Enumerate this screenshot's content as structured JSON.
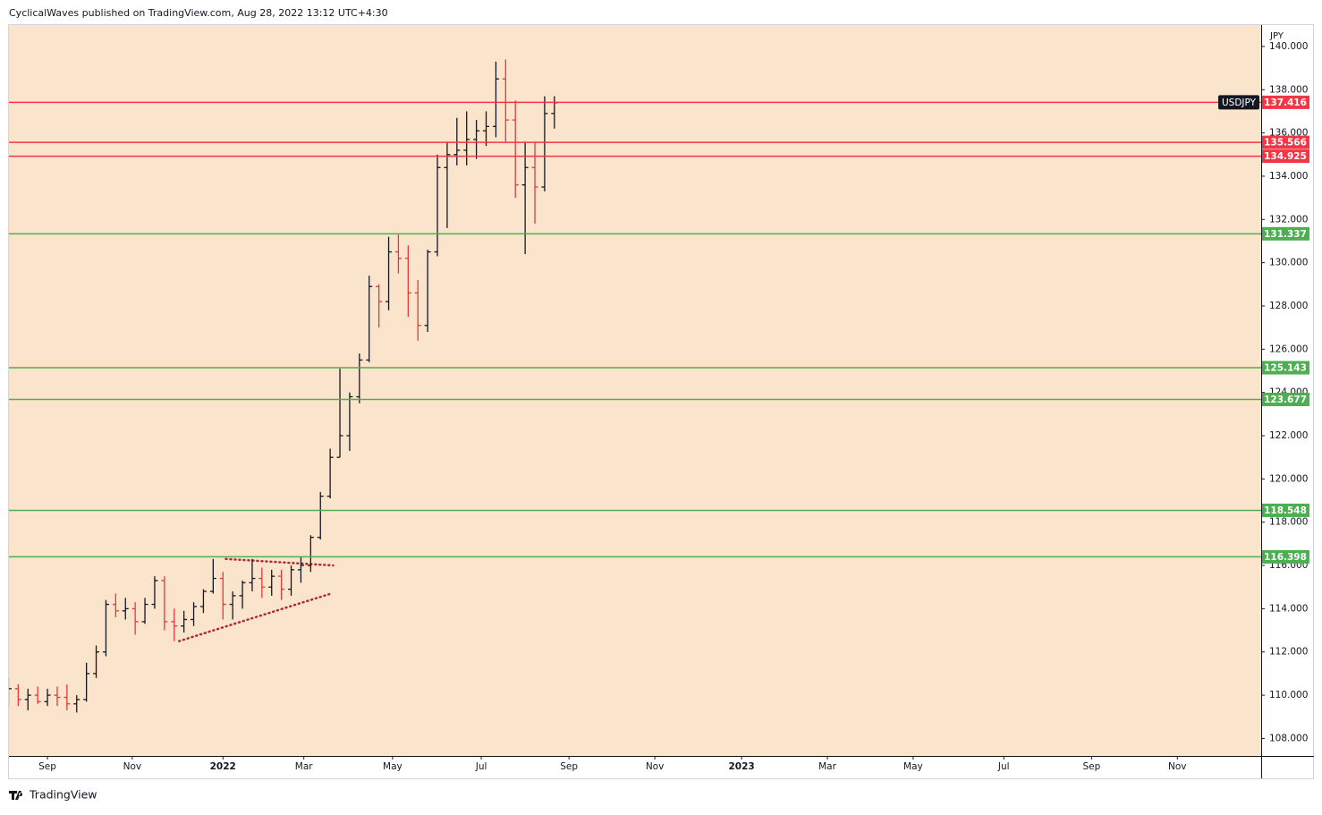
{
  "header": "CyclicalWaves published on TradingView.com, Aug 28, 2022 13:12 UTC+4:30",
  "footer": "TradingView",
  "chart_data": {
    "type": "ohlc",
    "symbol": "USDJPY",
    "currency": "JPY",
    "up_color": "#131722",
    "down_color": "#e5383b",
    "x": [
      -4,
      -3,
      -2,
      -1,
      0,
      1,
      2,
      3,
      4,
      5,
      6,
      7,
      8,
      9,
      10,
      11,
      12,
      13,
      14,
      15,
      16,
      17,
      18,
      19,
      20,
      21,
      22,
      23,
      24,
      25,
      26,
      27,
      28,
      29,
      30,
      31,
      32,
      33,
      34,
      35,
      36,
      37,
      38,
      39,
      40,
      41,
      42,
      43,
      44,
      45,
      46,
      47,
      48,
      49,
      50,
      51,
      52
    ],
    "open": [
      109.7,
      110.3,
      109.8,
      110.0,
      109.7,
      110.0,
      109.9,
      109.6,
      109.8,
      111.0,
      112.0,
      114.2,
      113.9,
      114.0,
      113.4,
      114.2,
      115.3,
      113.4,
      113.2,
      113.5,
      114.1,
      114.8,
      115.4,
      114.2,
      114.6,
      115.2,
      115.4,
      115.0,
      115.5,
      114.9,
      115.8,
      116.0,
      117.3,
      119.2,
      121.0,
      122.0,
      123.8,
      125.5,
      128.9,
      128.2,
      130.5,
      130.2,
      128.6,
      127.1,
      130.5,
      134.4,
      135.0,
      135.2,
      135.7,
      136.1,
      136.3,
      138.5,
      136.6,
      133.6,
      134.4,
      133.5,
      136.9
    ],
    "high": [
      110.8,
      110.5,
      110.3,
      110.4,
      110.3,
      110.4,
      110.5,
      110.0,
      111.5,
      112.3,
      114.4,
      114.7,
      114.5,
      114.3,
      114.5,
      115.5,
      115.5,
      114.0,
      113.9,
      114.3,
      114.9,
      116.3,
      115.7,
      114.8,
      115.3,
      116.3,
      115.9,
      115.8,
      115.8,
      116.0,
      116.4,
      117.4,
      119.4,
      121.4,
      125.1,
      124.0,
      125.8,
      129.4,
      129.0,
      131.2,
      131.3,
      130.8,
      129.2,
      130.6,
      135.0,
      135.6,
      136.7,
      137.0,
      136.6,
      137.0,
      139.3,
      139.4,
      137.5,
      135.6,
      135.6,
      137.7,
      137.7
    ],
    "low": [
      109.5,
      109.5,
      109.3,
      109.6,
      109.5,
      109.5,
      109.3,
      109.2,
      109.7,
      110.8,
      111.8,
      113.6,
      113.5,
      112.8,
      113.3,
      114.0,
      113.0,
      112.5,
      112.9,
      113.2,
      113.8,
      114.7,
      113.5,
      113.5,
      114.0,
      114.8,
      114.5,
      114.6,
      114.4,
      114.6,
      115.2,
      115.7,
      117.2,
      119.1,
      121.0,
      121.3,
      123.5,
      125.4,
      127.0,
      127.8,
      129.5,
      127.5,
      126.4,
      126.8,
      130.3,
      131.6,
      134.5,
      134.5,
      134.8,
      135.4,
      135.8,
      135.6,
      133.0,
      130.4,
      131.8,
      133.3,
      136.2
    ],
    "close": [
      110.3,
      109.8,
      110.0,
      109.7,
      110.0,
      109.9,
      109.6,
      109.8,
      111.0,
      112.0,
      114.2,
      113.9,
      114.0,
      113.4,
      114.2,
      115.3,
      113.4,
      113.2,
      113.5,
      114.1,
      114.8,
      115.4,
      114.2,
      114.6,
      115.2,
      115.4,
      115.0,
      115.5,
      114.9,
      115.8,
      116.0,
      117.3,
      119.2,
      121.0,
      122.0,
      123.8,
      125.5,
      128.9,
      128.2,
      130.5,
      130.2,
      128.6,
      127.1,
      130.5,
      134.4,
      135.0,
      135.2,
      135.7,
      136.1,
      136.3,
      138.5,
      136.6,
      133.6,
      134.4,
      133.5,
      136.9,
      137.4
    ],
    "levels": [
      {
        "value": 137.416,
        "color": "#f23645"
      },
      {
        "value": 135.566,
        "color": "#f23645"
      },
      {
        "value": 134.925,
        "color": "#f23645"
      },
      {
        "value": 131.337,
        "color": "#4caf50"
      },
      {
        "value": 125.143,
        "color": "#4caf50"
      },
      {
        "value": 123.677,
        "color": "#4caf50"
      },
      {
        "value": 118.548,
        "color": "#4caf50"
      },
      {
        "value": 116.398,
        "color": "#4caf50"
      }
    ],
    "trendlines": [
      {
        "x": [
          18.3,
          29.3
        ],
        "y": [
          116.3,
          116.0
        ],
        "color": "#b22833"
      },
      {
        "x": [
          13.5,
          29.1
        ],
        "y": [
          112.5,
          114.7
        ],
        "color": "#b22833"
      }
    ],
    "xlim": [
      -3.95,
      124.5
    ],
    "xticks": [
      {
        "value": 0,
        "label": "Sep"
      },
      {
        "value": 8.7,
        "label": "Nov"
      },
      {
        "value": 18.0,
        "label": "2022"
      },
      {
        "value": 26.3,
        "label": "Mar"
      },
      {
        "value": 35.4,
        "label": "May"
      },
      {
        "value": 44.5,
        "label": "Jul"
      },
      {
        "value": 53.5,
        "label": "Sep"
      },
      {
        "value": 62.3,
        "label": "Nov"
      },
      {
        "value": 71.2,
        "label": "2023"
      },
      {
        "value": 80.0,
        "label": "Mar"
      },
      {
        "value": 88.8,
        "label": "May"
      },
      {
        "value": 98.1,
        "label": "Jul"
      },
      {
        "value": 107.1,
        "label": "Sep"
      },
      {
        "value": 115.9,
        "label": "Nov"
      }
    ],
    "ylim": [
      107.19,
      140.99
    ],
    "yticks": [
      {
        "value": 108,
        "label": "108.000"
      },
      {
        "value": 110,
        "label": "110.000"
      },
      {
        "value": 112,
        "label": "112.000"
      },
      {
        "value": 114,
        "label": "114.000"
      },
      {
        "value": 116,
        "label": "116.000"
      },
      {
        "value": 118,
        "label": "118.000"
      },
      {
        "value": 120,
        "label": "120.000"
      },
      {
        "value": 122,
        "label": "122.000"
      },
      {
        "value": 124,
        "label": "124.000"
      },
      {
        "value": 126,
        "label": "126.000"
      },
      {
        "value": 128,
        "label": "128.000"
      },
      {
        "value": 130,
        "label": "130.000"
      },
      {
        "value": 132,
        "label": "132.000"
      },
      {
        "value": 134,
        "label": "134.000"
      },
      {
        "value": 136,
        "label": "136.000"
      },
      {
        "value": 138,
        "label": "138.000"
      },
      {
        "value": 140,
        "label": "140.000"
      }
    ]
  }
}
